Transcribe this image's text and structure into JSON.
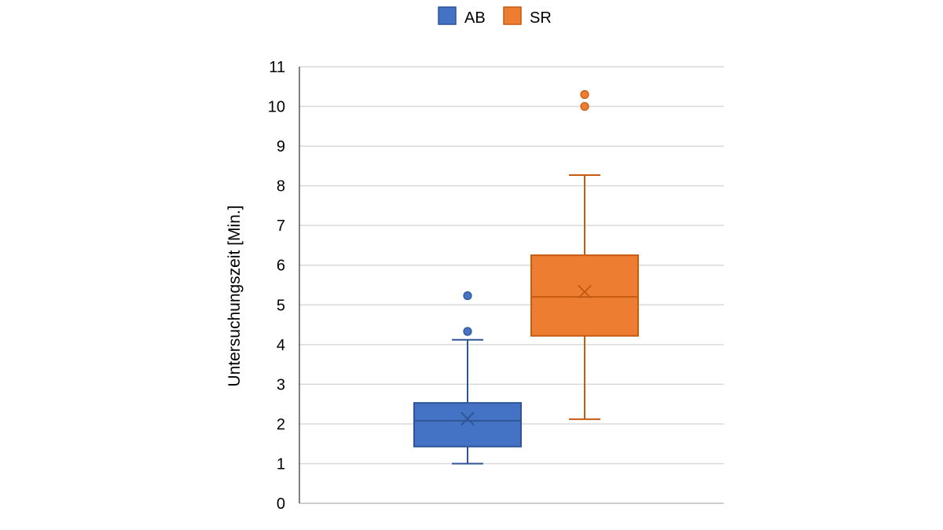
{
  "chart_data": {
    "type": "boxplot",
    "title": "",
    "xlabel": "",
    "ylabel": "Untersuchungszeit [Min.]",
    "ylim": [
      0,
      11
    ],
    "yticks": [
      "0",
      "1",
      "2",
      "3",
      "4",
      "5",
      "6",
      "7",
      "8",
      "9",
      "10",
      "11"
    ],
    "grid": true,
    "legend_position": "top-center",
    "series": [
      {
        "name": "AB",
        "color": "#4472C4",
        "edge_color": "#2F5597",
        "min": 1.0,
        "q1": 1.43,
        "median": 2.08,
        "mean": 2.13,
        "q3": 2.53,
        "max": 4.12,
        "outliers": [
          4.33,
          5.23
        ]
      },
      {
        "name": "SR",
        "color": "#ED7D31",
        "edge_color": "#C55A11",
        "min": 2.12,
        "q1": 4.22,
        "median": 5.2,
        "mean": 5.33,
        "q3": 6.25,
        "max": 8.27,
        "outliers": [
          10.0,
          10.3
        ]
      }
    ]
  }
}
